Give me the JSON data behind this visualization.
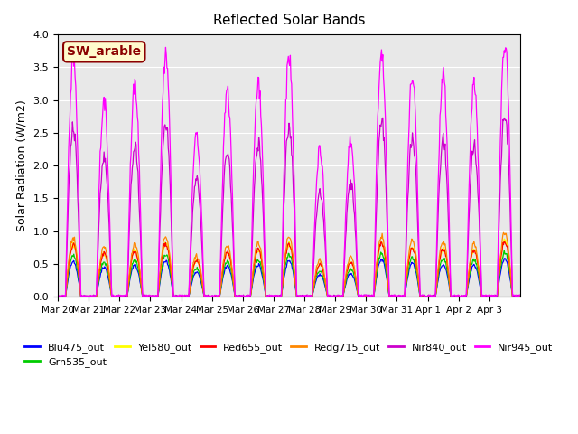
{
  "title": "Reflected Solar Bands",
  "ylabel": "Solar Radiation (W/m2)",
  "annotation_text": "SW_arable",
  "annotation_color": "#8B0000",
  "annotation_bg": "#FFFACD",
  "annotation_border": "#8B0000",
  "ylim": [
    0,
    4.0
  ],
  "yticks": [
    0.0,
    0.5,
    1.0,
    1.5,
    2.0,
    2.5,
    3.0,
    3.5,
    4.0
  ],
  "background_color": "#E8E8E8",
  "series": [
    {
      "name": "Blu475_out",
      "color": "#0000FF"
    },
    {
      "name": "Grn535_out",
      "color": "#00CC00"
    },
    {
      "name": "Yel580_out",
      "color": "#FFFF00"
    },
    {
      "name": "Red655_out",
      "color": "#FF0000"
    },
    {
      "name": "Redg715_out",
      "color": "#FF8800"
    },
    {
      "name": "Nir840_out",
      "color": "#CC00CC"
    },
    {
      "name": "Nir945_out",
      "color": "#FF00FF"
    }
  ],
  "xtick_labels": [
    "Mar 20",
    "Mar 21",
    "Mar 22",
    "Mar 23",
    "Mar 24",
    "Mar 25",
    "Mar 26",
    "Mar 27",
    "Mar 28",
    "Mar 29",
    "Mar 30",
    "Mar 31",
    "Apr 1",
    "Apr 2",
    "Apr 3"
  ],
  "scales": {
    "Blu475_out": 0.15,
    "Grn535_out": 0.175,
    "Yel580_out": 0.22,
    "Red655_out": 0.22,
    "Redg715_out": 0.25,
    "Nir840_out": 0.72,
    "Nir945_out": 1.0
  },
  "day_peaks": [
    3.6,
    3.0,
    3.2,
    3.7,
    2.5,
    3.1,
    3.25,
    3.65,
    2.25,
    2.4,
    3.75,
    3.4,
    3.35,
    3.2,
    3.9
  ],
  "n_days": 15,
  "points_per_day": 48,
  "seed": 42
}
